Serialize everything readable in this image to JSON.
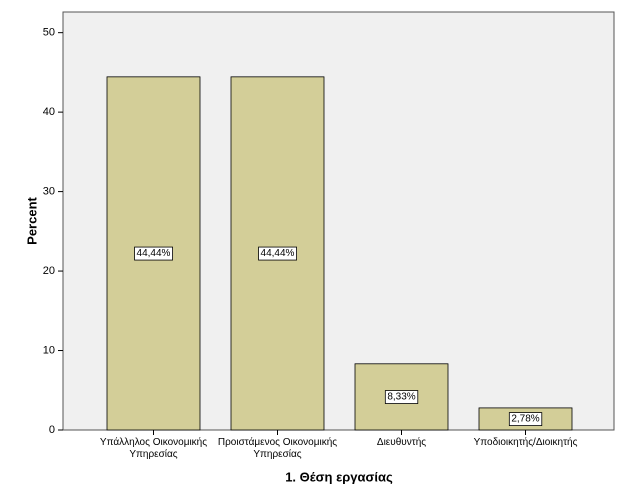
{
  "chart_data": {
    "type": "bar",
    "categories": [
      "Υπάλληλος Οικονομικής Υπηρεσίας",
      "Προιστάμενος Οικονομικής Υπηρεσίας",
      "Διευθυντής",
      "Υποδιοικητής/Διοικητής"
    ],
    "values": [
      44.44,
      44.44,
      8.33,
      2.78
    ],
    "value_labels": [
      "44,44%",
      "44,44%",
      "8,33%",
      "2,78%"
    ],
    "color": "#d3ce98",
    "ylabel": "Percent",
    "xlabel": "1. Θέση εργασίας",
    "ylim": [
      0,
      52.6
    ],
    "yticks": [
      0,
      10,
      20,
      30,
      40,
      50
    ]
  }
}
